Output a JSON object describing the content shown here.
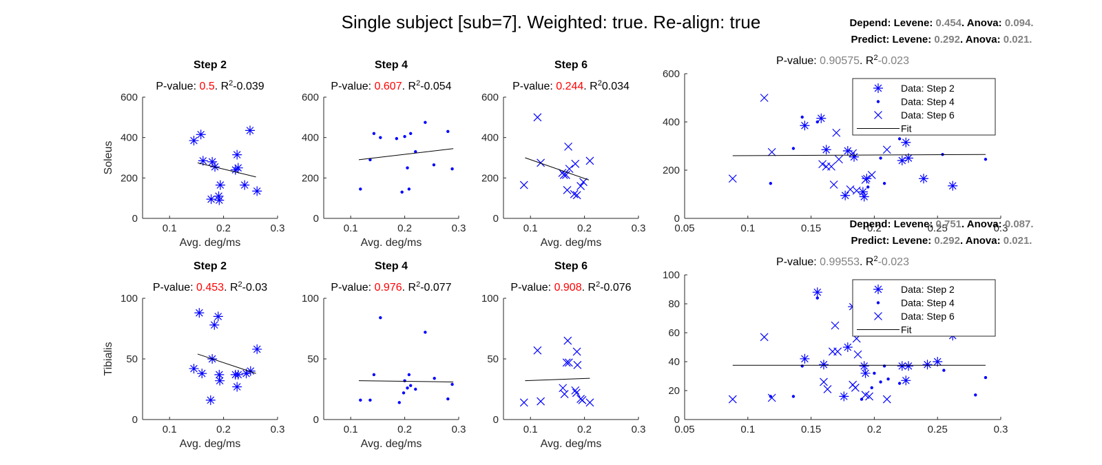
{
  "figure_title": "Single subject [sub=7]. Weighted: true. Re-align: true",
  "colors": {
    "data": "#0000ff",
    "significant_p": "#ff0000",
    "grey_value": "#808080",
    "fit": "#000000"
  },
  "chart_data": [
    {
      "type": "scatter",
      "muscle": "Soleus",
      "title": "Step 2",
      "pvalue": "0.5",
      "r2": "-0.039",
      "marker": "star",
      "xlabel": "Avg. deg/ms",
      "ylabel": "Soleus",
      "xlim": [
        0.05,
        0.3
      ],
      "ylim": [
        0,
        600
      ],
      "xticks": [
        "0.1",
        "0.2",
        "0.3"
      ],
      "yticks": [
        "0",
        "200",
        "400",
        "600"
      ],
      "x": [
        0.145,
        0.158,
        0.162,
        0.177,
        0.179,
        0.184,
        0.191,
        0.192,
        0.194,
        0.222,
        0.225,
        0.227,
        0.239,
        0.249,
        0.262
      ],
      "y": [
        385,
        415,
        285,
        95,
        280,
        255,
        110,
        90,
        165,
        240,
        315,
        250,
        165,
        435,
        135
      ],
      "fit_line": {
        "x": [
          0.152,
          0.26
        ],
        "y": [
          275,
          205
        ]
      }
    },
    {
      "type": "scatter",
      "muscle": "Soleus",
      "title": "Step 4",
      "pvalue": "0.607",
      "r2": "-0.054",
      "marker": "dot",
      "xlabel": "Avg. deg/ms",
      "ylabel": "",
      "xlim": [
        0.05,
        0.3
      ],
      "ylim": [
        0,
        600
      ],
      "xticks": [
        "0.1",
        "0.2",
        "0.3"
      ],
      "yticks": [
        "0",
        "200",
        "400",
        "600"
      ],
      "x": [
        0.118,
        0.136,
        0.143,
        0.155,
        0.185,
        0.195,
        0.2,
        0.205,
        0.208,
        0.211,
        0.22,
        0.238,
        0.254,
        0.28,
        0.288
      ],
      "y": [
        145,
        290,
        420,
        400,
        395,
        130,
        405,
        250,
        145,
        420,
        330,
        475,
        265,
        430,
        245
      ],
      "fit_line": {
        "x": [
          0.115,
          0.29
        ],
        "y": [
          290,
          345
        ]
      }
    },
    {
      "type": "scatter",
      "muscle": "Soleus",
      "title": "Step 6",
      "pvalue": "0.244",
      "r2": "0.034",
      "marker": "cross",
      "xlabel": "Avg. deg/ms",
      "ylabel": "",
      "xlim": [
        0.05,
        0.3
      ],
      "ylim": [
        0,
        600
      ],
      "xticks": [
        "0.1",
        "0.2",
        "0.3"
      ],
      "yticks": [
        "0",
        "200",
        "400",
        "600"
      ],
      "x": [
        0.088,
        0.113,
        0.119,
        0.159,
        0.162,
        0.166,
        0.168,
        0.17,
        0.172,
        0.181,
        0.183,
        0.186,
        0.193,
        0.198,
        0.21
      ],
      "y": [
        165,
        500,
        275,
        225,
        215,
        215,
        140,
        355,
        245,
        120,
        270,
        115,
        160,
        180,
        285
      ],
      "fit_line": {
        "x": [
          0.09,
          0.208
        ],
        "y": [
          300,
          190
        ]
      }
    },
    {
      "type": "scatter",
      "muscle": "Soleus",
      "title": "",
      "pvalue": "0.90575",
      "r2": "-0.023",
      "stats": {
        "depend": {
          "levene": "0.454",
          "anova": "0.094"
        },
        "predict": {
          "levene": "0.292",
          "anova": "0.021"
        }
      },
      "xlim": [
        0.05,
        0.3
      ],
      "ylim": [
        0,
        600
      ],
      "xticks": [
        "0.05",
        "0.1",
        "0.15",
        "0.2",
        "0.25",
        "0.3"
      ],
      "yticks": [
        "0",
        "200",
        "400",
        "600"
      ],
      "series": [
        {
          "name": "Data: Step 2",
          "marker": "star",
          "x": [
            0.145,
            0.158,
            0.162,
            0.177,
            0.179,
            0.184,
            0.191,
            0.192,
            0.194,
            0.222,
            0.225,
            0.227,
            0.239,
            0.249,
            0.262
          ],
          "y": [
            385,
            415,
            285,
            95,
            280,
            255,
            110,
            90,
            165,
            240,
            315,
            250,
            165,
            435,
            135
          ]
        },
        {
          "name": "Data: Step 4",
          "marker": "dot",
          "x": [
            0.118,
            0.136,
            0.143,
            0.155,
            0.185,
            0.195,
            0.2,
            0.205,
            0.208,
            0.211,
            0.22,
            0.238,
            0.254,
            0.28,
            0.288
          ],
          "y": [
            145,
            290,
            420,
            400,
            395,
            130,
            405,
            250,
            145,
            420,
            330,
            475,
            265,
            430,
            245
          ]
        },
        {
          "name": "Data: Step 6",
          "marker": "cross",
          "x": [
            0.088,
            0.113,
            0.119,
            0.159,
            0.162,
            0.166,
            0.168,
            0.17,
            0.172,
            0.181,
            0.183,
            0.186,
            0.193,
            0.198,
            0.21
          ],
          "y": [
            165,
            500,
            275,
            225,
            215,
            215,
            140,
            355,
            245,
            120,
            270,
            115,
            160,
            180,
            285
          ]
        }
      ],
      "fit_name": "Fit",
      "fit_line": {
        "x": [
          0.088,
          0.288
        ],
        "y": [
          260,
          265
        ]
      }
    },
    {
      "type": "scatter",
      "muscle": "Tibialis",
      "title": "Step 2",
      "pvalue": "0.453",
      "r2": "-0.03",
      "marker": "star",
      "xlabel": "Avg. deg/ms",
      "ylabel": "Tibialis",
      "xlim": [
        0.05,
        0.3
      ],
      "ylim": [
        0,
        100
      ],
      "xticks": [
        "0.1",
        "0.2",
        "0.3"
      ],
      "yticks": [
        "0",
        "50",
        "100"
      ],
      "x": [
        0.145,
        0.155,
        0.16,
        0.176,
        0.179,
        0.183,
        0.19,
        0.192,
        0.193,
        0.222,
        0.225,
        0.227,
        0.242,
        0.25,
        0.262
      ],
      "y": [
        42,
        88,
        38,
        16,
        50,
        78,
        85,
        37,
        32,
        37,
        27,
        37,
        38,
        40,
        58
      ],
      "fit_line": {
        "x": [
          0.152,
          0.26
        ],
        "y": [
          54,
          38
        ]
      }
    },
    {
      "type": "scatter",
      "muscle": "Tibialis",
      "title": "Step 4",
      "pvalue": "0.976",
      "r2": "-0.077",
      "marker": "dot",
      "xlabel": "Avg. deg/ms",
      "ylabel": "",
      "xlim": [
        0.05,
        0.3
      ],
      "ylim": [
        0,
        100
      ],
      "xticks": [
        "0.1",
        "0.2",
        "0.3"
      ],
      "yticks": [
        "0",
        "50",
        "100"
      ],
      "x": [
        0.118,
        0.136,
        0.143,
        0.155,
        0.19,
        0.198,
        0.2,
        0.205,
        0.208,
        0.211,
        0.22,
        0.238,
        0.255,
        0.28,
        0.288
      ],
      "y": [
        16,
        16,
        37,
        84,
        14,
        22,
        32,
        26,
        37,
        28,
        25,
        72,
        34,
        17,
        29
      ],
      "fit_line": {
        "x": [
          0.115,
          0.29
        ],
        "y": [
          32,
          31
        ]
      }
    },
    {
      "type": "scatter",
      "muscle": "Tibialis",
      "title": "Step 6",
      "pvalue": "0.908",
      "r2": "-0.076",
      "marker": "cross",
      "xlabel": "Avg. deg/ms",
      "ylabel": "",
      "xlim": [
        0.05,
        0.3
      ],
      "ylim": [
        0,
        100
      ],
      "xticks": [
        "0.1",
        "0.2",
        "0.3"
      ],
      "yticks": [
        "0",
        "50",
        "100"
      ],
      "x": [
        0.088,
        0.113,
        0.119,
        0.16,
        0.163,
        0.167,
        0.169,
        0.171,
        0.183,
        0.185,
        0.186,
        0.187,
        0.193,
        0.196,
        0.21
      ],
      "y": [
        14,
        57,
        15,
        26,
        21,
        47,
        65,
        47,
        24,
        22,
        56,
        45,
        17,
        16,
        14
      ],
      "fit_line": {
        "x": [
          0.09,
          0.21
        ],
        "y": [
          32,
          34
        ]
      }
    },
    {
      "type": "scatter",
      "muscle": "Tibialis",
      "title": "",
      "pvalue": "0.99553",
      "r2": "-0.023",
      "stats": {
        "depend": {
          "levene": "0.751",
          "anova": "0.087"
        },
        "predict": {
          "levene": "0.292",
          "anova": "0.021"
        }
      },
      "xlim": [
        0.05,
        0.3
      ],
      "ylim": [
        0,
        100
      ],
      "xticks": [
        "0.05",
        "0.1",
        "0.15",
        "0.2",
        "0.25",
        "0.3"
      ],
      "yticks": [
        "0",
        "20",
        "40",
        "60",
        "80",
        "100"
      ],
      "series": [
        {
          "name": "Data: Step 2",
          "marker": "star",
          "x": [
            0.145,
            0.155,
            0.16,
            0.176,
            0.179,
            0.183,
            0.19,
            0.192,
            0.193,
            0.222,
            0.225,
            0.227,
            0.242,
            0.25,
            0.262
          ],
          "y": [
            42,
            88,
            38,
            16,
            50,
            78,
            85,
            37,
            32,
            37,
            27,
            37,
            38,
            40,
            58
          ]
        },
        {
          "name": "Data: Step 4",
          "marker": "dot",
          "x": [
            0.118,
            0.136,
            0.143,
            0.155,
            0.19,
            0.198,
            0.2,
            0.205,
            0.208,
            0.211,
            0.22,
            0.238,
            0.255,
            0.28,
            0.288
          ],
          "y": [
            16,
            16,
            37,
            84,
            14,
            22,
            32,
            26,
            37,
            28,
            25,
            72,
            34,
            17,
            29
          ]
        },
        {
          "name": "Data: Step 6",
          "marker": "cross",
          "x": [
            0.088,
            0.113,
            0.119,
            0.16,
            0.163,
            0.167,
            0.169,
            0.171,
            0.183,
            0.185,
            0.186,
            0.187,
            0.193,
            0.196,
            0.21
          ],
          "y": [
            14,
            57,
            15,
            26,
            21,
            47,
            65,
            47,
            24,
            22,
            56,
            45,
            17,
            16,
            14
          ]
        }
      ],
      "fit_name": "Fit",
      "fit_line": {
        "x": [
          0.088,
          0.288
        ],
        "y": [
          37.5,
          37.5
        ]
      }
    }
  ]
}
